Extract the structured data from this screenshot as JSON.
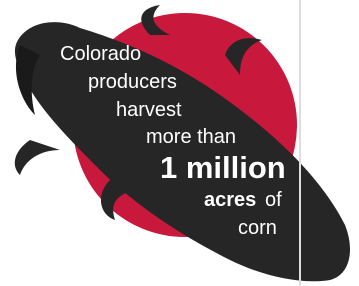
{
  "infographic": {
    "lines": [
      "Colorado",
      "producers",
      "harvest",
      "more than",
      "1 million",
      "acres",
      "of",
      "corn"
    ]
  }
}
